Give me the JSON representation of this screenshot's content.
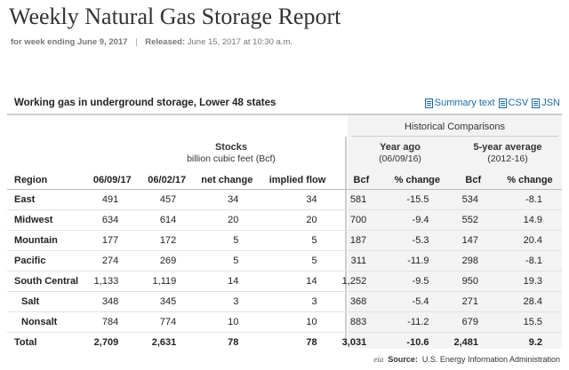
{
  "header": {
    "title": "Weekly Natural Gas Storage Report",
    "week_label": "for week ending June 9, 2017",
    "separator": "|",
    "released_label": "Released:",
    "released_value": "June 15, 2017 at 10:30 a.m."
  },
  "section": {
    "title": "Working gas in underground storage, Lower 48 states",
    "links": {
      "summary": "Summary text",
      "csv": "CSV",
      "json": "JSN"
    }
  },
  "groups": {
    "historical": "Historical Comparisons",
    "stocks_title": "Stocks",
    "stocks_unit": "billion cubic feet (Bcf)",
    "year_ago_title": "Year ago",
    "year_ago_date": "(06/09/16)",
    "five_year_title": "5-year average",
    "five_year_range": "(2012-16)"
  },
  "columns": [
    "Region",
    "06/09/17",
    "06/02/17",
    "net change",
    "implied flow",
    "Bcf",
    "% change",
    "Bcf",
    "% change"
  ],
  "rows": [
    {
      "region": "East",
      "cells": [
        "491",
        "457",
        "34",
        "34",
        "581",
        "-15.5",
        "534",
        "-8.1"
      ]
    },
    {
      "region": "Midwest",
      "cells": [
        "634",
        "614",
        "20",
        "20",
        "700",
        "-9.4",
        "552",
        "14.9"
      ]
    },
    {
      "region": "Mountain",
      "cells": [
        "177",
        "172",
        "5",
        "5",
        "187",
        "-5.3",
        "147",
        "20.4"
      ]
    },
    {
      "region": "Pacific",
      "cells": [
        "274",
        "269",
        "5",
        "5",
        "311",
        "-11.9",
        "298",
        "-8.1"
      ]
    },
    {
      "region": "South Central",
      "cells": [
        "1,133",
        "1,119",
        "14",
        "14",
        "1,252",
        "-9.5",
        "950",
        "19.3"
      ]
    },
    {
      "region": "Salt",
      "cells": [
        "348",
        "345",
        "3",
        "3",
        "368",
        "-5.4",
        "271",
        "28.4"
      ]
    },
    {
      "region": "Nonsalt",
      "cells": [
        "784",
        "774",
        "10",
        "10",
        "883",
        "-11.2",
        "679",
        "15.5"
      ]
    },
    {
      "region": "Total",
      "cells": [
        "2,709",
        "2,631",
        "78",
        "78",
        "3,031",
        "-10.6",
        "2,481",
        "9.2"
      ]
    }
  ],
  "footer": {
    "logo": "eia",
    "source_label": "Source:",
    "source_value": "U.S. Energy Information Administration"
  },
  "colors": {
    "link": "#1a6aa6",
    "rule": "#cccccc",
    "historical_bg": "#f3f3f3"
  }
}
